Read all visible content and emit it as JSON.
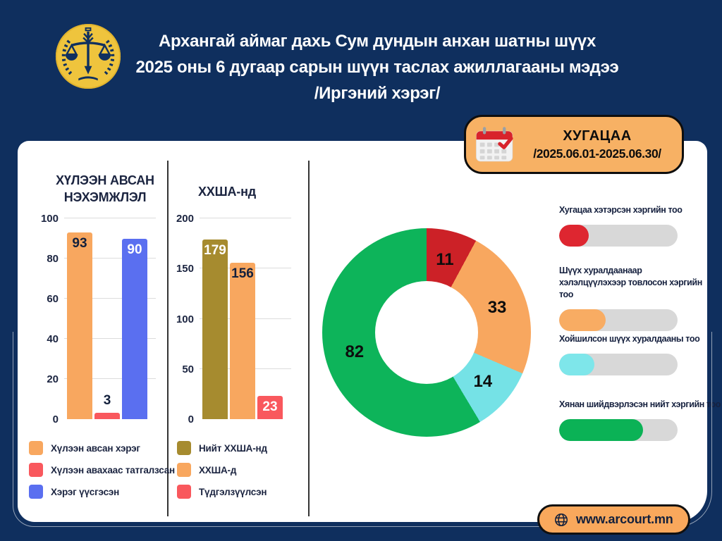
{
  "header": {
    "title_line1": "Архангай аймаг дахь Сум дундын анхан шатны шүүх",
    "title_line2": "2025 оны 6 дугаар сарын шүүн таслах ажиллагааны мэдээ",
    "title_line3": "/Иргэний хэрэг/"
  },
  "badge": {
    "label": "ХУГАЦАА",
    "period": "/2025.06.01-2025.06.30/",
    "icon": "calendar-icon"
  },
  "footer": {
    "website": "www.arcourt.mn",
    "icon": "globe-icon"
  },
  "colors": {
    "background_navy": "#0F2F5E",
    "card_white": "#FFFFFF",
    "badge_orange": "#F7B164",
    "bar_orange": "#F8A75F",
    "bar_red": "#F9585D",
    "bar_blue": "#5A6FF0",
    "bar_olive": "#A68B2F",
    "donut_red": "#CC2127",
    "donut_cyan": "#75E2E6",
    "donut_green": "#0DB45A",
    "track_gray": "#D8D8D8",
    "text_dark": "#1B2440"
  },
  "chart_data": [
    {
      "id": "claims",
      "type": "bar",
      "title": "ХҮЛЭЭН АВСАН НЭХЭМЖЛЭЛ",
      "title_lines": [
        "ХҮЛЭЭН АВСАН",
        "НЭХЭМЖЛЭЛ"
      ],
      "categories": [
        "Хүлээн авсан хэрэг",
        "Хүлээн авахаас татгалзсан",
        "Хэрэг үүсгэсэн"
      ],
      "values": [
        93,
        3,
        90
      ],
      "colors": [
        "#F8A75F",
        "#F9585D",
        "#5A6FF0"
      ],
      "value_label_colors": [
        "#13203C",
        "#13203C",
        "#FFFFFF"
      ],
      "value_label_inside": [
        true,
        false,
        true
      ],
      "ylim": [
        0,
        100
      ],
      "yticks": [
        0,
        20,
        40,
        60,
        80,
        100
      ],
      "grid": true,
      "legend": [
        {
          "label": "Хүлээн авсан хэрэг",
          "color": "#F8A75F"
        },
        {
          "label": "Хүлээн авахаас татгалзсан",
          "color": "#F9585D"
        },
        {
          "label": "Хэрэг үүсгэсэн",
          "color": "#5A6FF0"
        }
      ]
    },
    {
      "id": "xxsha",
      "type": "bar",
      "title": "ХХША-нд",
      "title_lines": [
        "ХХША-нд"
      ],
      "categories": [
        "Нийт ХХША-нд",
        "ХХША-д",
        "Түдгэлзүүлсэн"
      ],
      "values": [
        179,
        156,
        23
      ],
      "colors": [
        "#A68B2F",
        "#F8A75F",
        "#F9585D"
      ],
      "value_label_colors": [
        "#FFFFFF",
        "#13203C",
        "#FFFFFF"
      ],
      "value_label_inside": [
        true,
        true,
        true
      ],
      "ylim": [
        0,
        200
      ],
      "yticks": [
        0,
        50,
        100,
        150,
        200
      ],
      "grid": true,
      "legend": [
        {
          "label": "Нийт ХХША-нд",
          "color": "#A68B2F"
        },
        {
          "label": "ХХША-д",
          "color": "#F8A75F"
        },
        {
          "label": "Түдгэлзүүлсэн",
          "color": "#F9585D"
        }
      ]
    },
    {
      "id": "cases-donut",
      "type": "donut",
      "labels": [
        "Хугацаа хэтэрсэн хэргийн тоо",
        "Шүүх хуралдаанаар хэлэлцүүлэхээр товлосон хэргийн тоо",
        "Хойшилсон шүүх хуралдааны тоо",
        "Хянан шийдвэрлэсэн нийт хэргийн тоо"
      ],
      "values": [
        11,
        33,
        14,
        82
      ],
      "colors": [
        "#CC2127",
        "#F8A75F",
        "#75E2E6",
        "#0DB45A"
      ],
      "start_angle_deg": 0,
      "direction": "clockwise",
      "hole_ratio": 0.49,
      "label_radius": 106
    }
  ],
  "right_panel": {
    "items": [
      {
        "label": "Хугацаа хэтэрсэн хэргийн тоо",
        "color": "#DE2630",
        "fill_percent": 25
      },
      {
        "label": "Шүүх хуралдаанаар хэлэлцүүлэхээр товлосон хэргийн тоо",
        "color": "#F8AC63",
        "fill_percent": 39
      },
      {
        "label": "Хойшилсон шүүх хуралдааны тоо",
        "color": "#7EE6EA",
        "fill_percent": 30
      },
      {
        "label": "Хянан шийдвэрлэсэн нийт хэргийн тоо",
        "color": "#0BB256",
        "fill_percent": 71
      }
    ]
  }
}
